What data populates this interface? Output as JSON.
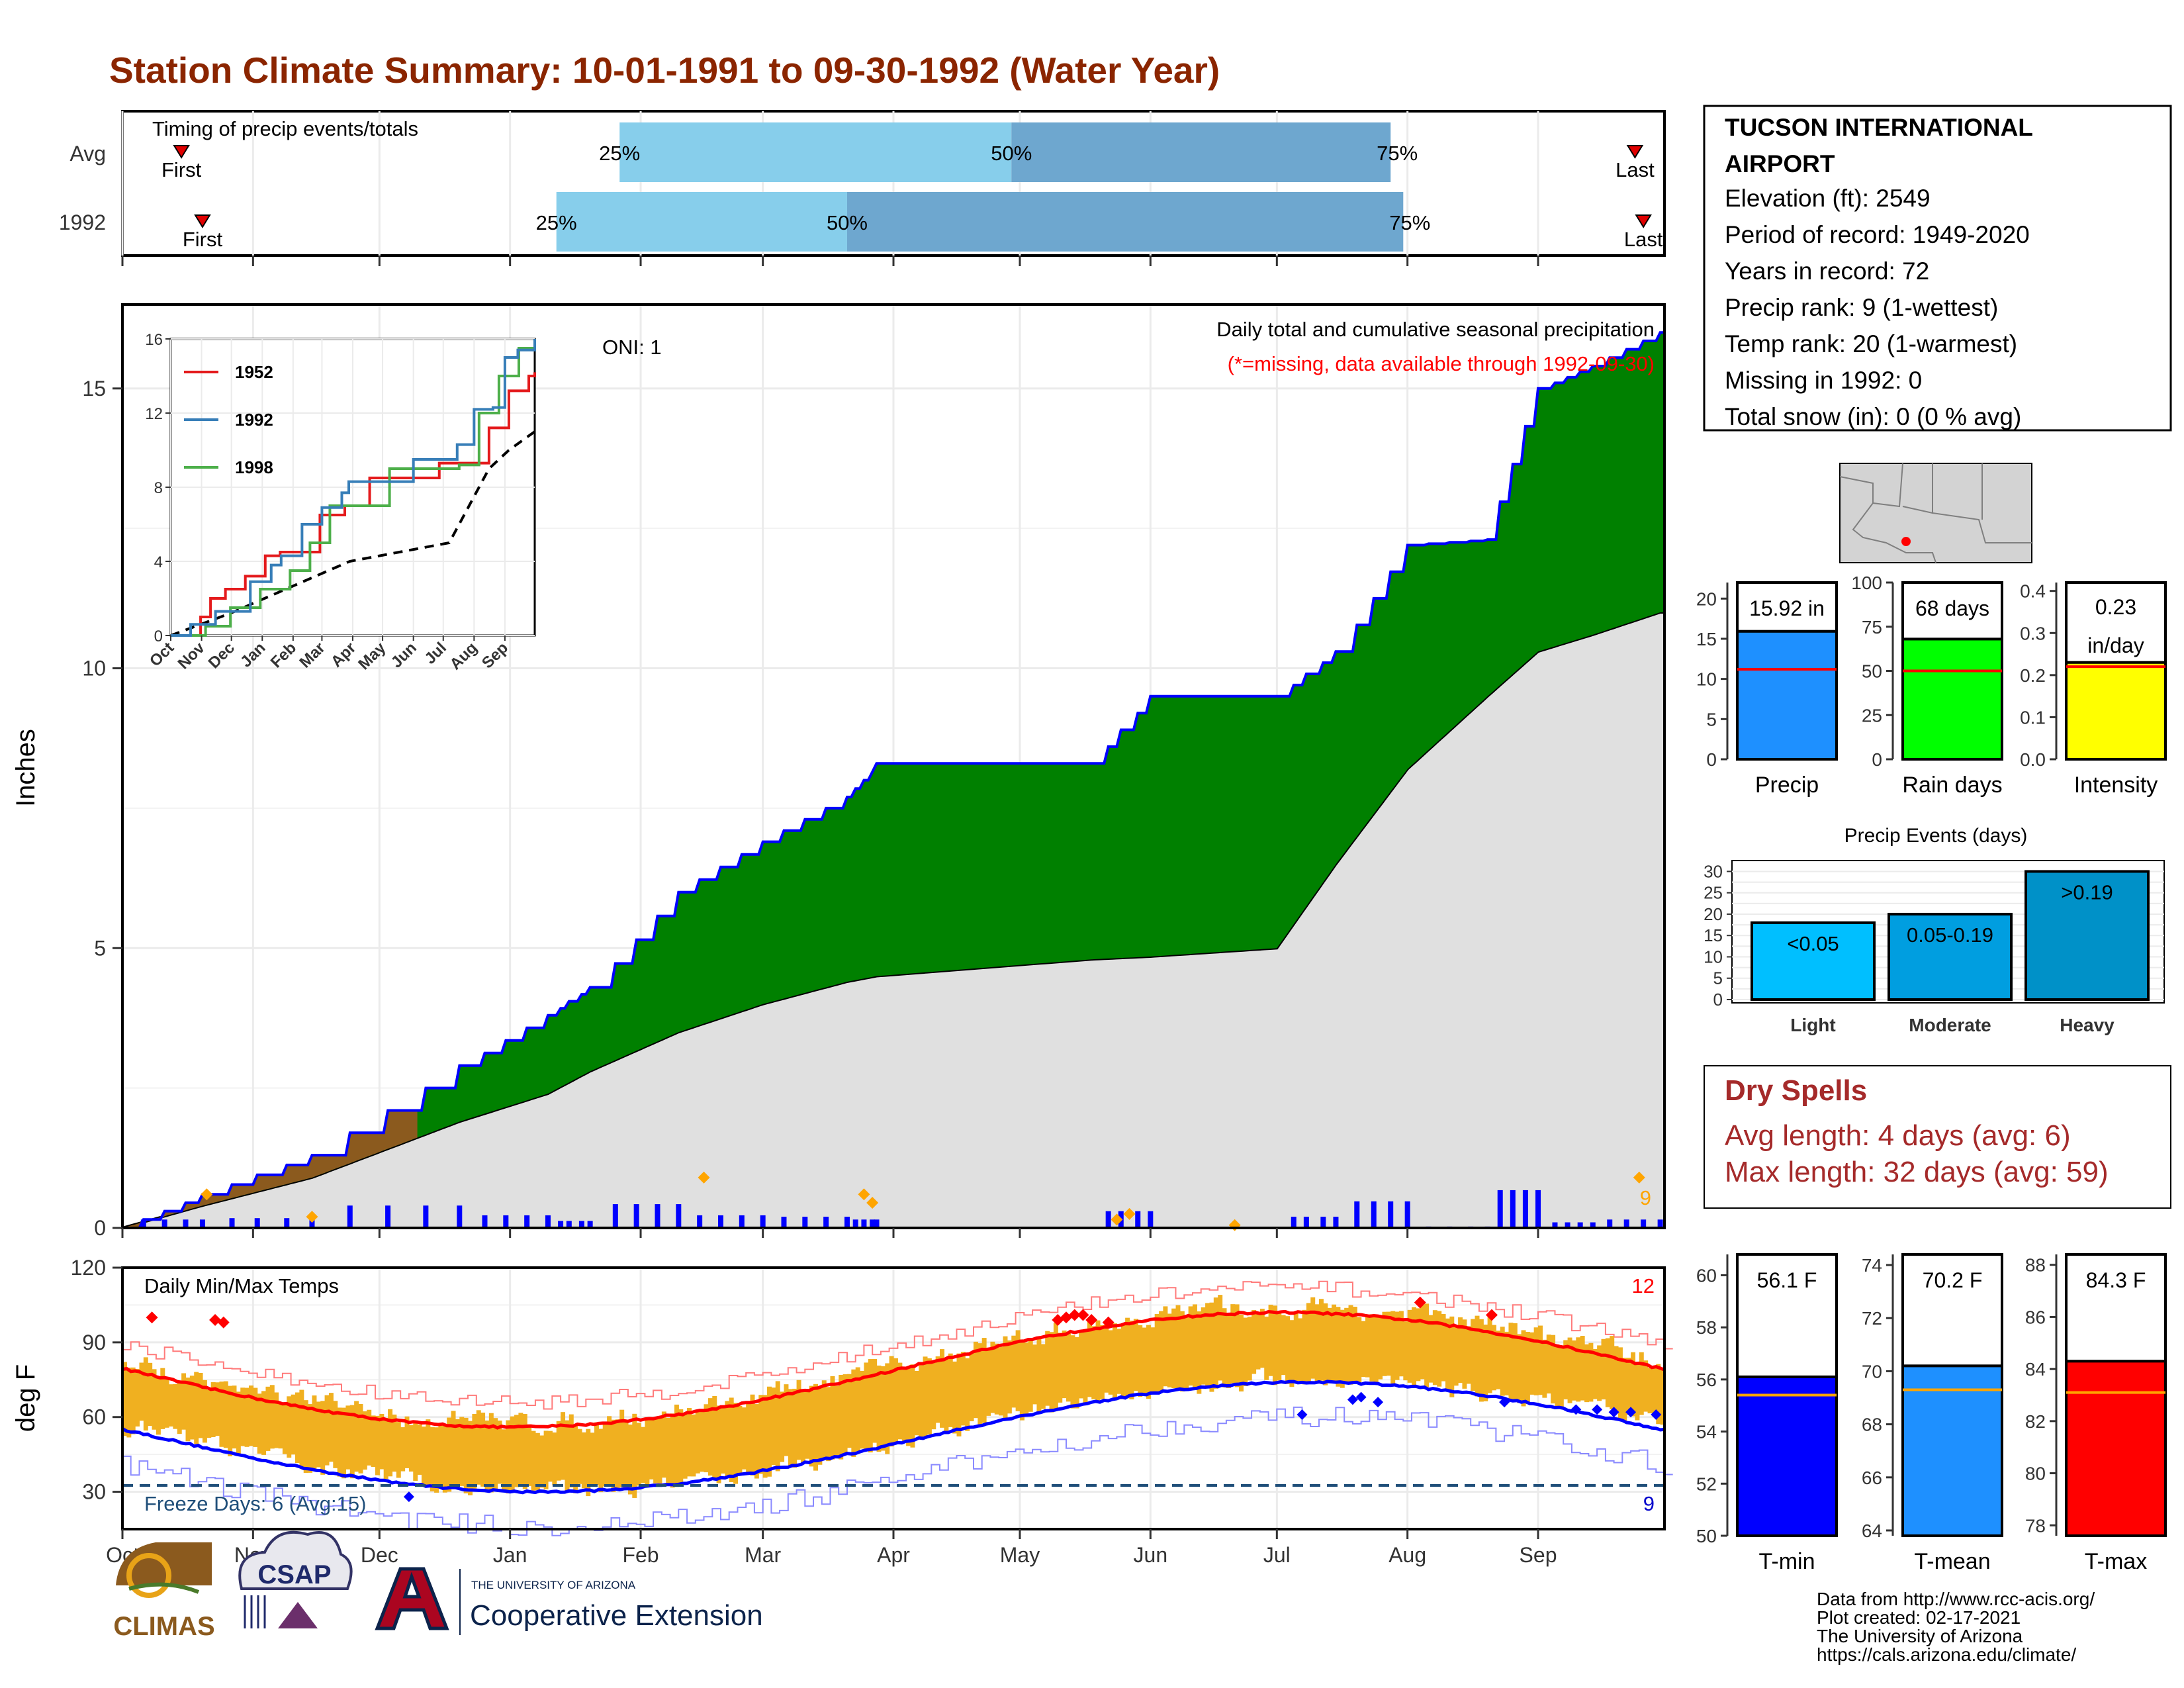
{
  "title": "Station Climate Summary: 10-01-1991 to 09-30-1992 (Water Year)",
  "timing": {
    "title": "Timing of precip events/totals",
    "rows": [
      {
        "label": "Avg",
        "first": "Oct 15",
        "p25": "Jan 27",
        "p50": "Apr 29",
        "p75": "Jul 28",
        "last": "Sep 24"
      },
      {
        "label": "1992",
        "first": "Oct 20",
        "p25": "Jan 12",
        "p50": "Mar 21",
        "p75": "Jul 31",
        "last": "Sep 26"
      }
    ],
    "first_label": "First",
    "last_label": "Last",
    "p25_label": "25%",
    "p50_label": "50%",
    "p75_label": "75%"
  },
  "station": {
    "name_line1": "TUCSON INTERNATIONAL",
    "name_line2": "AIRPORT",
    "lines": [
      "Elevation (ft): 2549",
      "Period of record: 1949-2020",
      "Years in record: 72",
      "Precip rank: 9 (1-wettest)",
      "Temp rank: 20 (1-warmest)",
      "Missing in 1992: 0",
      "Total snow (in): 0 (0 % avg)"
    ]
  },
  "precip_panel": {
    "ylabel": "Inches",
    "oni": "ONI: 1",
    "label1": "Daily total and cumulative seasonal precipitation",
    "label2": "(*=missing, data available through 1992-09-30)",
    "corner_count": "9",
    "ylim": [
      0,
      16.5
    ],
    "yticks": [
      0,
      5,
      10,
      15
    ]
  },
  "inset": {
    "series": [
      {
        "name": "1952",
        "color": "#e41a1c"
      },
      {
        "name": "1992",
        "color": "#377eb8"
      },
      {
        "name": "1998",
        "color": "#4daf4a"
      }
    ],
    "yticks": [
      "0",
      "4",
      "8",
      "12",
      "16"
    ],
    "months": [
      "Oct",
      "Nov",
      "Dec",
      "Jan",
      "Feb",
      "Mar",
      "Apr",
      "May",
      "Jun",
      "Jul",
      "Aug",
      "Sep"
    ]
  },
  "temp_panel": {
    "ylabel": "deg F",
    "label": "Daily Min/Max Temps",
    "freeze_label": "Freeze Days: 6 (Avg:15)",
    "max_count": "12",
    "min_count": "9",
    "yticks": [
      "30",
      "60",
      "90",
      "120"
    ],
    "ylim": [
      15,
      120
    ]
  },
  "months": [
    "Oct",
    "Nov",
    "Dec",
    "Jan",
    "Feb",
    "Mar",
    "Apr",
    "May",
    "Jun",
    "Jul",
    "Aug",
    "Sep"
  ],
  "bars_top": [
    {
      "value_label": "15.92 in",
      "name": "Precip",
      "value": 15.92,
      "avg": 11.2,
      "ymax": 22,
      "ticks": [
        "0",
        "5",
        "10",
        "15",
        "20"
      ],
      "tickvals": [
        0,
        5,
        10,
        15,
        20
      ],
      "color": "#1e90ff"
    },
    {
      "value_label": "68 days",
      "name": "Rain days",
      "value": 68,
      "avg": 50,
      "ymax": 100,
      "ticks": [
        "0",
        "25",
        "50",
        "75",
        "100"
      ],
      "tickvals": [
        0,
        25,
        50,
        75,
        100
      ],
      "color": "#00ff00"
    },
    {
      "value_label": "0.23\nin/day",
      "name": "Intensity",
      "value": 0.23,
      "avg": 0.22,
      "ymax": 0.42,
      "ticks": [
        "0.0",
        "0.1",
        "0.2",
        "0.3",
        "0.4"
      ],
      "tickvals": [
        0,
        0.1,
        0.2,
        0.3,
        0.4
      ],
      "color": "#ffff00"
    }
  ],
  "precip_events": {
    "title": "Precip Events (days)",
    "yticks": [
      "0",
      "5",
      "10",
      "15",
      "20",
      "25",
      "30"
    ],
    "categories": [
      "Light",
      "Moderate",
      "Heavy"
    ],
    "labels": [
      "<0.05",
      "0.05-0.19",
      ">0.19"
    ],
    "values": [
      18,
      20,
      30
    ],
    "colors": [
      "#00bfff",
      "#009ee0",
      "#0091c8"
    ]
  },
  "dry_spells": {
    "title": "Dry Spells",
    "line1": "Avg length: 4 days (avg: 6)",
    "line2": "Max length: 32 days (avg: 59)"
  },
  "bars_bottom": [
    {
      "value_label": "56.1 F",
      "name": "T-min",
      "value": 56.1,
      "avg": 55.4,
      "ymin": 50,
      "ymax": 60.8,
      "ticks": [
        "50",
        "52",
        "54",
        "56",
        "58",
        "60"
      ],
      "tickvals": [
        50,
        52,
        54,
        56,
        58,
        60
      ],
      "color": "#0000ff"
    },
    {
      "value_label": "70.2 F",
      "name": "T-mean",
      "value": 70.2,
      "avg": 69.3,
      "ymin": 63.8,
      "ymax": 74.4,
      "ticks": [
        "64",
        "66",
        "68",
        "70",
        "72",
        "74"
      ],
      "tickvals": [
        64,
        66,
        68,
        70,
        72,
        74
      ],
      "color": "#1e90ff"
    },
    {
      "value_label": "84.3 F",
      "name": "T-max",
      "value": 84.3,
      "avg": 83.1,
      "ymin": 77.6,
      "ymax": 88.4,
      "ticks": [
        "78",
        "80",
        "82",
        "84",
        "86",
        "88"
      ],
      "tickvals": [
        78,
        80,
        82,
        84,
        86,
        88
      ],
      "color": "#ff0000"
    }
  ],
  "footer": {
    "line1": "Data from http://www.rcc-acis.org/",
    "line2": "Plot created: 02-17-2021",
    "line3": "The University of Arizona",
    "line4": "https://cals.arizona.edu/climate/"
  },
  "logos": {
    "climas": "CLIMAS",
    "csap": "CSAP",
    "ua_small": "THE UNIVERSITY OF ARIZONA",
    "ua_big": "Cooperative Extension"
  },
  "chart_data": {
    "type": "area",
    "title": "Station Climate Summary: 10-01-1991 to 09-30-1992 (Water Year)",
    "xlabel": "",
    "ylabel": "Inches",
    "ylim": [
      0,
      16.5
    ],
    "x_range": [
      "1991-10-01",
      "1992-09-30"
    ],
    "x": [
      "1991-10-01",
      "1991-10-20",
      "1991-11-15",
      "1991-12-20",
      "1992-01-10",
      "1992-01-20",
      "1992-02-10",
      "1992-03-01",
      "1992-03-21",
      "1992-03-28",
      "1992-05-18",
      "1992-06-01",
      "1992-07-01",
      "1992-07-15",
      "1992-08-01",
      "1992-08-20",
      "1992-09-01",
      "1992-09-14",
      "1992-09-30"
    ],
    "series": [
      {
        "name": "1992",
        "values": [
          0.0,
          0.6,
          1.3,
          2.9,
          3.8,
          4.3,
          6.0,
          6.9,
          7.7,
          8.3,
          8.3,
          9.5,
          9.5,
          10.3,
          12.2,
          12.3,
          15.0,
          15.4,
          16.0
        ]
      },
      {
        "name": "Avg",
        "values": [
          0.0,
          0.4,
          0.9,
          1.9,
          2.4,
          2.8,
          3.5,
          4.0,
          4.4,
          4.5,
          4.8,
          4.85,
          5.0,
          6.5,
          8.2,
          9.5,
          10.3,
          10.6,
          11.0
        ]
      }
    ]
  }
}
